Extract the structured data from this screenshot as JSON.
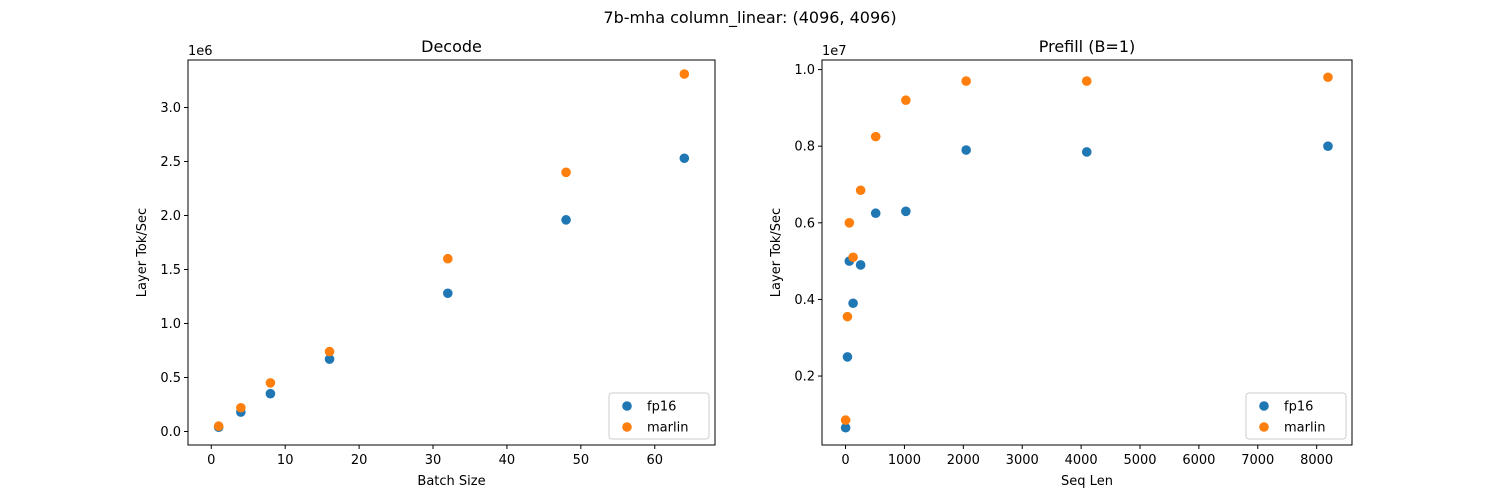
{
  "figure": {
    "suptitle": "7b-mha column_linear: (4096, 4096)"
  },
  "colors": {
    "fp16": "#1f77b4",
    "marlin": "#ff7f0e",
    "axis": "#000000",
    "legend_border": "#cccccc"
  },
  "chart_data": [
    {
      "type": "scatter",
      "title": "Decode",
      "xlabel": "Batch Size",
      "ylabel": "Layer Tok/Sec",
      "y_offset_label": "1e6",
      "y_scale": 1000000,
      "xlim": [
        -3.15,
        68.15
      ],
      "ylim": [
        -0.125,
        3.44
      ],
      "x_ticks": [
        0,
        10,
        20,
        30,
        40,
        50,
        60
      ],
      "y_ticks": [
        0.0,
        0.5,
        1.0,
        1.5,
        2.0,
        2.5,
        3.0
      ],
      "y_tick_labels": [
        "0.0",
        "0.5",
        "1.0",
        "1.5",
        "2.0",
        "2.5",
        "3.0"
      ],
      "grid": false,
      "legend_position": "lower-right",
      "series": [
        {
          "name": "fp16",
          "x": [
            1,
            4,
            8,
            16,
            32,
            48,
            64
          ],
          "y": [
            0.04,
            0.18,
            0.35,
            0.67,
            1.28,
            1.96,
            2.53
          ]
        },
        {
          "name": "marlin",
          "x": [
            1,
            4,
            8,
            16,
            32,
            48,
            64
          ],
          "y": [
            0.05,
            0.22,
            0.45,
            0.74,
            1.6,
            2.4,
            3.31
          ]
        }
      ]
    },
    {
      "type": "scatter",
      "title": "Prefill (B=1)",
      "xlabel": "Seq Len",
      "ylabel": "Layer Tok/Sec",
      "y_offset_label": "1e7",
      "y_scale": 10000000,
      "xlim": [
        -400,
        8600
      ],
      "ylim": [
        0.02,
        1.025
      ],
      "x_ticks": [
        0,
        1000,
        2000,
        3000,
        4000,
        5000,
        6000,
        7000,
        8000
      ],
      "y_ticks": [
        0.2,
        0.4,
        0.6,
        0.8,
        1.0
      ],
      "y_tick_labels": [
        "0.2",
        "0.4",
        "0.6",
        "0.8",
        "1.0"
      ],
      "grid": false,
      "legend_position": "lower-right",
      "series": [
        {
          "name": "fp16",
          "x": [
            1,
            32,
            64,
            128,
            256,
            512,
            1024,
            2048,
            4096,
            8192
          ],
          "y": [
            0.065,
            0.25,
            0.5,
            0.39,
            0.49,
            0.625,
            0.63,
            0.79,
            0.785,
            0.8
          ]
        },
        {
          "name": "marlin",
          "x": [
            1,
            32,
            64,
            128,
            256,
            512,
            1024,
            2048,
            4096,
            8192
          ],
          "y": [
            0.085,
            0.355,
            0.6,
            0.51,
            0.685,
            0.825,
            0.92,
            0.97,
            0.97,
            0.98
          ]
        }
      ]
    }
  ]
}
